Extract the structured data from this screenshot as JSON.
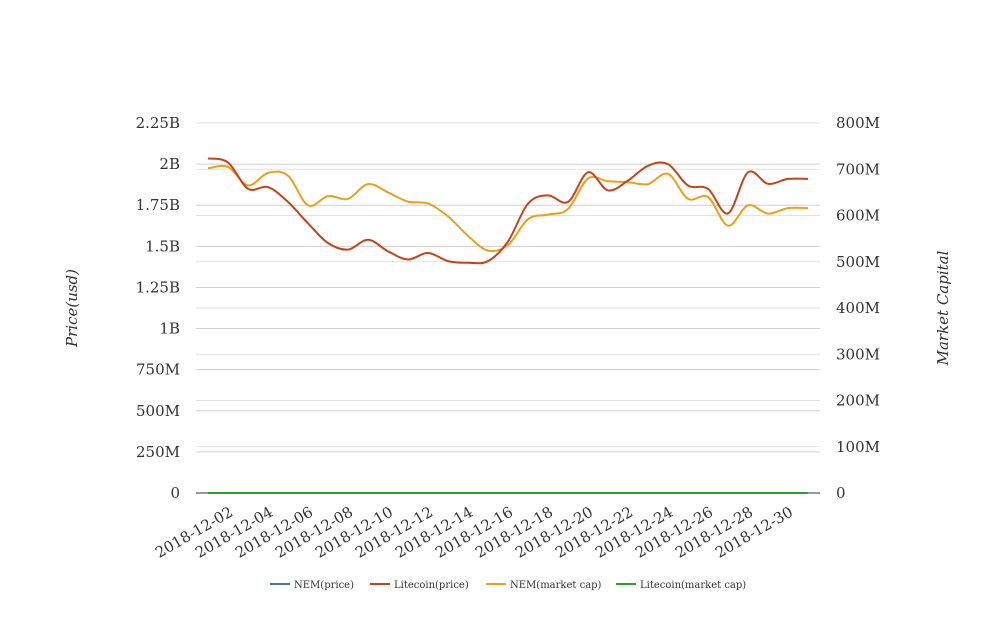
{
  "chart_data": {
    "type": "line",
    "title": "",
    "ylabel": "Price(usd)",
    "y2label": "Market Capital",
    "ylim": [
      0,
      2250000000
    ],
    "y2lim": [
      0,
      800000000
    ],
    "grid": true,
    "legend_position": "bottom",
    "y_ticks": [
      "0",
      "250M",
      "500M",
      "750M",
      "1B",
      "1.25B",
      "1.5B",
      "1.75B",
      "2B",
      "2.25B"
    ],
    "y2_ticks": [
      "0",
      "100M",
      "200M",
      "300M",
      "400M",
      "500M",
      "600M",
      "700M",
      "800M"
    ],
    "x_ticks": [
      "2018-12-02",
      "2018-12-04",
      "2018-12-06",
      "2018-12-08",
      "2018-12-10",
      "2018-12-12",
      "2018-12-14",
      "2018-12-16",
      "2018-12-18",
      "2018-12-20",
      "2018-12-22",
      "2018-12-24",
      "2018-12-26",
      "2018-12-28",
      "2018-12-30"
    ],
    "x": [
      "2018-12-01",
      "2018-12-02",
      "2018-12-03",
      "2018-12-04",
      "2018-12-05",
      "2018-12-06",
      "2018-12-07",
      "2018-12-08",
      "2018-12-09",
      "2018-12-10",
      "2018-12-11",
      "2018-12-12",
      "2018-12-13",
      "2018-12-14",
      "2018-12-15",
      "2018-12-16",
      "2018-12-17",
      "2018-12-18",
      "2018-12-19",
      "2018-12-20",
      "2018-12-21",
      "2018-12-22",
      "2018-12-23",
      "2018-12-24",
      "2018-12-25",
      "2018-12-26",
      "2018-12-27",
      "2018-12-28",
      "2018-12-29",
      "2018-12-30",
      "2018-12-31"
    ],
    "series": [
      {
        "name": "NEM(price)",
        "axis": "left",
        "color": "#4a72b8",
        "values": [
          0.08,
          0.08,
          0.08,
          0.08,
          0.08,
          0.08,
          0.07,
          0.07,
          0.07,
          0.07,
          0.07,
          0.07,
          0.07,
          0.07,
          0.06,
          0.05,
          0.06,
          0.07,
          0.07,
          0.07,
          0.08,
          0.08,
          0.08,
          0.08,
          0.08,
          0.07,
          0.07,
          0.06,
          0.07,
          0.07,
          0.07
        ]
      },
      {
        "name": "Litecoin(price)",
        "axis": "left",
        "color": "#c2441c",
        "values": [
          2035000000,
          2010000000,
          1850000000,
          1860000000,
          1770000000,
          1640000000,
          1520000000,
          1480000000,
          1540000000,
          1470000000,
          1420000000,
          1460000000,
          1410000000,
          1400000000,
          1410000000,
          1530000000,
          1760000000,
          1810000000,
          1770000000,
          1950000000,
          1840000000,
          1900000000,
          1990000000,
          2000000000,
          1870000000,
          1850000000,
          1700000000,
          1950000000,
          1880000000,
          1910000000,
          1910000000
        ]
      },
      {
        "name": "NEM(market cap)",
        "axis": "right",
        "color": "#eaa11a",
        "values": [
          702000000,
          705000000,
          665000000,
          692000000,
          686000000,
          622000000,
          642000000,
          636000000,
          668000000,
          650000000,
          630000000,
          626000000,
          598000000,
          556000000,
          524000000,
          536000000,
          592000000,
          602000000,
          614000000,
          680000000,
          674000000,
          672000000,
          668000000,
          690000000,
          636000000,
          640000000,
          578000000,
          622000000,
          604000000,
          616000000,
          616000000
        ]
      },
      {
        "name": "Litecoin(market cap)",
        "axis": "right",
        "color": "#2ca02c",
        "values": [
          0,
          0,
          0,
          0,
          0,
          0,
          0,
          0,
          0,
          0,
          0,
          0,
          0,
          0,
          0,
          0,
          0,
          0,
          0,
          0,
          0,
          0,
          0,
          0,
          0,
          0,
          0,
          0,
          0,
          0,
          0
        ]
      }
    ]
  }
}
